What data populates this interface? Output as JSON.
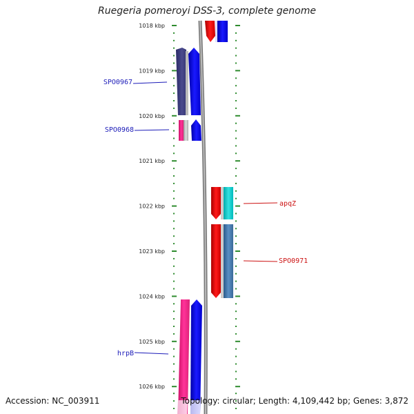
{
  "title": "Ruegeria pomeroyi DSS-3, complete genome",
  "accession": "Accession: NC_003911",
  "summary": "Topology: circular; Length: 4,109,442 bp; Genes: 3,872",
  "scale": {
    "tick_labels": [
      "1018 kbp",
      "1019 kbp",
      "1020 kbp",
      "1021 kbp",
      "1022 kbp",
      "1023 kbp",
      "1024 kbp",
      "1025 kbp",
      "1026 kbp"
    ],
    "tick_color": "#2e8b2e"
  },
  "genes": [
    {
      "label": "SPO0967",
      "strand": "reverse",
      "color": "#1a1ab8"
    },
    {
      "label": "SPO0968",
      "strand": "reverse",
      "color": "#1a1ab8"
    },
    {
      "label": "apqZ",
      "strand": "forward",
      "color": "#cc1111"
    },
    {
      "label": "SPO0971",
      "strand": "forward",
      "color": "#cc1111"
    },
    {
      "label": "hrpB",
      "strand": "reverse",
      "color": "#1a1ab8"
    }
  ],
  "colors": {
    "forward_cds": "#ee0000",
    "reverse_cds": "#0000ee",
    "backbone": "#888888"
  }
}
